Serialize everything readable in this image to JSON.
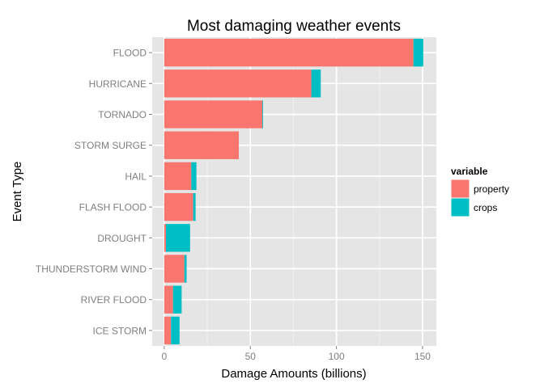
{
  "chart_data": {
    "type": "bar",
    "orientation": "horizontal",
    "stacked": true,
    "title": "Most damaging weather events",
    "xlabel": "Damage Amounts (billions)",
    "ylabel": "Event Type",
    "xlim": [
      -7,
      158
    ],
    "xticks": [
      0,
      50,
      100,
      150
    ],
    "grid": true,
    "legend": {
      "title": "variable",
      "placement": "right"
    },
    "categories": [
      "FLOOD",
      "HURRICANE",
      "TORNADO",
      "STORM SURGE",
      "HAIL",
      "FLASH FLOOD",
      "DROUGHT",
      "THUNDERSTORM WIND",
      "RIVER FLOOD",
      "ICE STORM"
    ],
    "series": [
      {
        "name": "property",
        "color": "#F8766D",
        "values": [
          144.7,
          85.4,
          57.0,
          43.3,
          15.7,
          16.8,
          1.0,
          11.7,
          5.1,
          3.9
        ]
      },
      {
        "name": "crops",
        "color": "#00BFC4",
        "values": [
          5.7,
          5.5,
          0.4,
          0.0,
          3.0,
          1.4,
          14.0,
          1.3,
          5.0,
          5.0
        ]
      }
    ]
  },
  "colors": {
    "panel_background": "#E5E5E5",
    "grid_major": "#FFFFFF",
    "grid_minor": "#F2F2F2",
    "tick_text": "#7F7F7F",
    "text": "#000000"
  }
}
